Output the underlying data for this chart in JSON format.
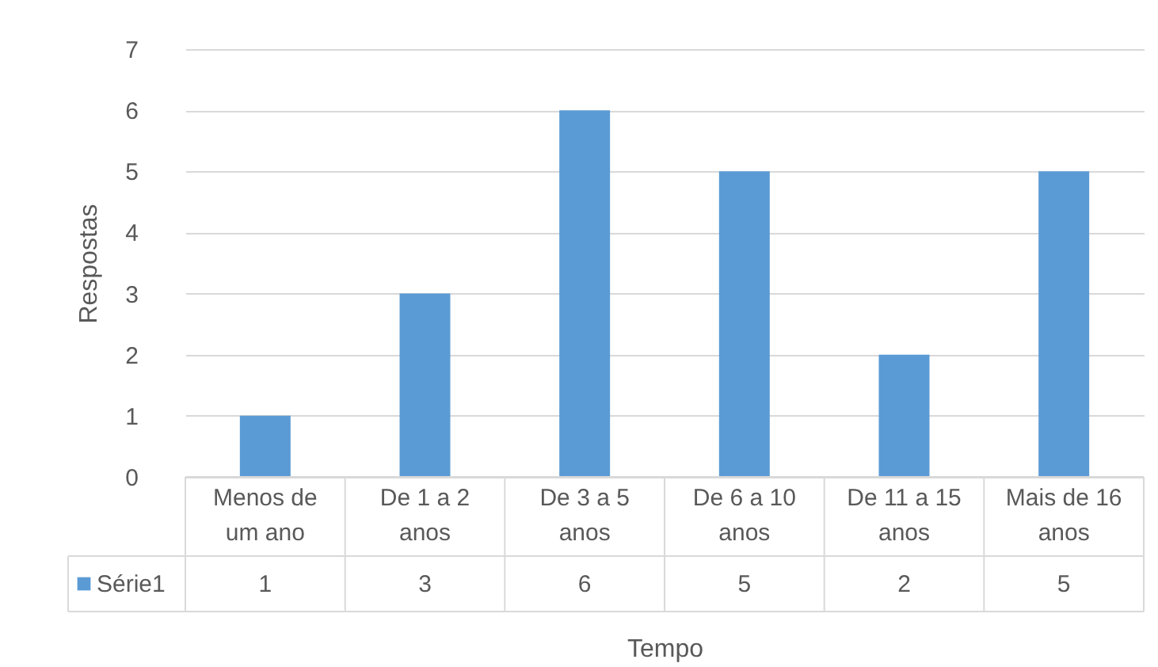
{
  "chart_data": {
    "type": "bar",
    "xlabel": "Tempo",
    "ylabel": "Respostas",
    "categories": [
      "Menos de um ano",
      "De 1 a 2 anos",
      "De 3 a 5 anos",
      "De 6 a 10 anos",
      "De 11 a 15 anos",
      "Mais de 16 anos"
    ],
    "series": [
      {
        "name": "Série1",
        "color": "#5b9bd5",
        "values": [
          1,
          3,
          6,
          5,
          2,
          5
        ]
      }
    ],
    "ylim": [
      0,
      7
    ],
    "yticks": [
      0,
      1,
      2,
      3,
      4,
      5,
      6,
      7
    ],
    "grid": "y",
    "legend": "bottom left",
    "data_labels": true
  }
}
